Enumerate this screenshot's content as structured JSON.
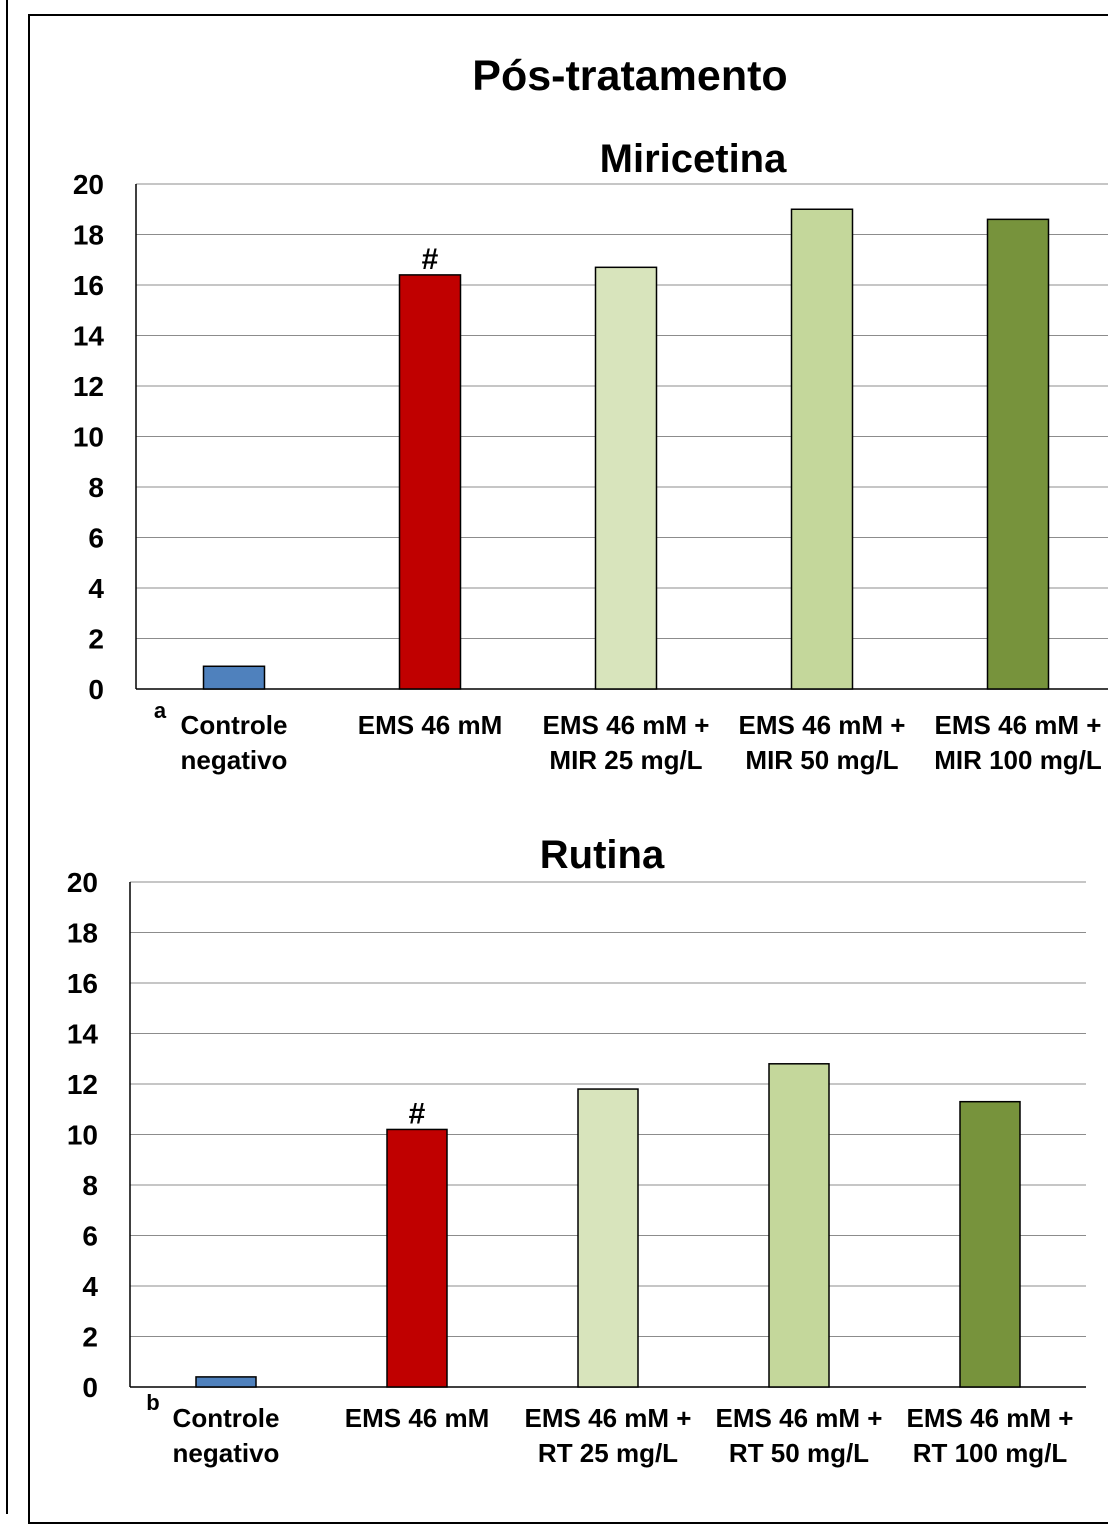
{
  "figure": {
    "title": "Pós-tratamento"
  },
  "chart_data": [
    {
      "type": "bar",
      "panel_label": "a",
      "title": "Miricetina",
      "ylim": [
        0,
        20
      ],
      "yticks": [
        0,
        2,
        4,
        6,
        8,
        10,
        12,
        14,
        16,
        18,
        20
      ],
      "grid": true,
      "legend": "none",
      "categories": [
        [
          "Controle",
          "negativo"
        ],
        [
          "EMS 46 mM"
        ],
        [
          "EMS 46 mM +",
          "MIR 25 mg/L"
        ],
        [
          "EMS 46 mM +",
          "MIR 50 mg/L"
        ],
        [
          "EMS 46 mM +",
          "MIR 100 mg/L"
        ]
      ],
      "values": [
        0.9,
        16.4,
        16.7,
        19.0,
        18.6
      ],
      "colors": [
        "#4f81bd",
        "#c00000",
        "#d8e4bc",
        "#c4d79b",
        "#77933c"
      ],
      "annotations": [
        "",
        "#",
        "",
        "",
        ""
      ]
    },
    {
      "type": "bar",
      "panel_label": "b",
      "title": "Rutina",
      "ylim": [
        0,
        20
      ],
      "yticks": [
        0,
        2,
        4,
        6,
        8,
        10,
        12,
        14,
        16,
        18,
        20
      ],
      "grid": true,
      "legend": "none",
      "categories": [
        [
          "Controle",
          "negativo"
        ],
        [
          "EMS 46 mM"
        ],
        [
          "EMS 46 mM +",
          "RT 25 mg/L"
        ],
        [
          "EMS 46 mM +",
          "RT 50 mg/L"
        ],
        [
          "EMS 46 mM +",
          "RT 100 mg/L"
        ]
      ],
      "values": [
        0.4,
        10.2,
        11.8,
        12.8,
        11.3
      ],
      "colors": [
        "#4f81bd",
        "#c00000",
        "#d8e4bc",
        "#c4d79b",
        "#77933c"
      ],
      "annotations": [
        "",
        "#",
        "",
        "",
        ""
      ]
    }
  ]
}
